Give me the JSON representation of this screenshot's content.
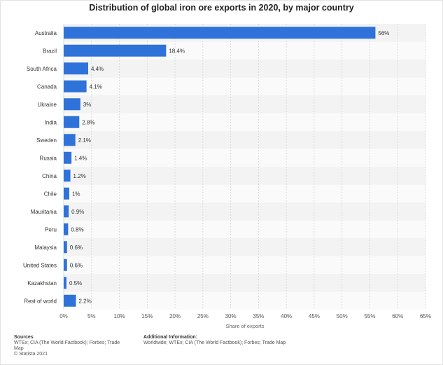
{
  "chart_data": {
    "type": "bar",
    "orientation": "horizontal",
    "title": "Distribution of global iron ore exports in 2020, by major country",
    "xlabel": "Share of exports",
    "ylabel": "",
    "xlim": [
      0,
      65
    ],
    "x_ticks": [
      "0%",
      "5%",
      "10%",
      "15%",
      "20%",
      "25%",
      "30%",
      "35%",
      "40%",
      "45%",
      "50%",
      "55%",
      "60%",
      "65%"
    ],
    "categories": [
      "Australia",
      "Brazil",
      "South Africa",
      "Canada",
      "Ukraine",
      "India",
      "Sweden",
      "Russia",
      "China",
      "Chile",
      "Mauritania",
      "Peru",
      "Malaysia",
      "United States",
      "Kazakhstan",
      "Rest of world"
    ],
    "values": [
      56,
      18.4,
      4.4,
      4.1,
      3,
      2.8,
      2.1,
      1.4,
      1.2,
      1,
      0.9,
      0.8,
      0.6,
      0.6,
      0.5,
      2.2
    ],
    "value_labels": [
      "56%",
      "18.4%",
      "4.4%",
      "4.1%",
      "3%",
      "2.8%",
      "2.1%",
      "1.4%",
      "1.2%",
      "1%",
      "0.9%",
      "0.8%",
      "0.6%",
      "0.6%",
      "0.5%",
      "2.2%"
    ],
    "bar_color": "#2f72d9",
    "grid": true,
    "legend": "none"
  },
  "footer": {
    "sources_title": "Sources",
    "sources_line1": "WTEx; CIA (The World Factbook); Forbes; Trade",
    "sources_line2": "Map",
    "copyright": "© Statista 2021",
    "info_title": "Additional Information:",
    "info_text": "Worldwide; WTEx; CIA (The World Factbook); Forbes; Trade Map"
  }
}
